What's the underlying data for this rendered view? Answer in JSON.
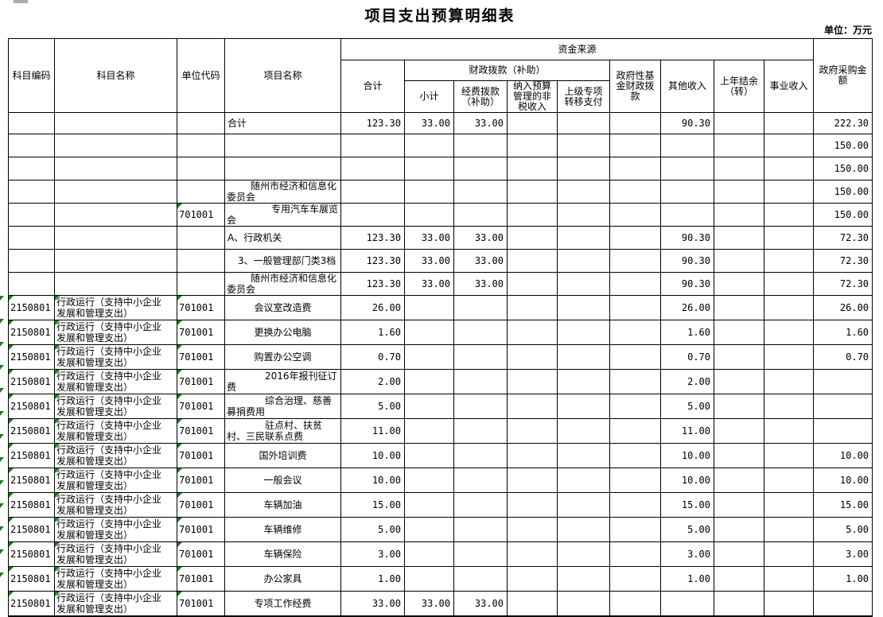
{
  "title": "项目支出预算明细表",
  "unit_label": "单位：万元",
  "colors": {
    "error_indicator": "#1f7a1f",
    "grid_border": "#000000",
    "background": "#ffffff",
    "artifact_gray": "#ababab"
  },
  "columns": {
    "subject_code": "科目编码",
    "subject_name": "科目名称",
    "unit_code": "单位代码",
    "project_name": "项目名称",
    "funding_source_group": "资金来源",
    "total": "合计",
    "fiscal_appropriation_group": "财政拨款（补助）",
    "subtotal": "小计",
    "appropriation": "经费拨款（补助）",
    "nontax_income": "纳入预算管理的非税收入",
    "transfer_payment": "上级专项转移支付",
    "govfund": "政府性基金财政拨款",
    "other_income": "其他收入",
    "carryover": "上年结余（转）",
    "business_income": "事业收入",
    "procurement": "政府采购金额"
  },
  "rows": [
    {
      "project": "合计",
      "align": "l",
      "total": "123.30",
      "subtotal": "33.00",
      "appropriation": "33.00",
      "other_income": "90.30",
      "procurement": "222.30"
    },
    {
      "procurement": "150.00"
    },
    {
      "procurement": "150.00"
    },
    {
      "project": "随州市经济和信息化委员会",
      "align": "i3",
      "procurement": "150.00"
    },
    {
      "unit": "701001",
      "tri": "u",
      "project": "专用汽车车展览会",
      "align": "i5",
      "procurement": "150.00"
    },
    {
      "project": "A、行政机关",
      "align": "l",
      "total": "123.30",
      "subtotal": "33.00",
      "appropriation": "33.00",
      "other_income": "90.30",
      "procurement": "72.30"
    },
    {
      "project": "3、一般管理部门类3档",
      "align": "i1",
      "total": "123.30",
      "subtotal": "33.00",
      "appropriation": "33.00",
      "other_income": "90.30",
      "procurement": "72.30"
    },
    {
      "project": "随州市经济和信息化委员会",
      "align": "i3",
      "total": "123.30",
      "subtotal": "33.00",
      "appropriation": "33.00",
      "other_income": "90.30",
      "procurement": "72.30"
    },
    {
      "code": "2150801",
      "subject": "行政运行（支持中小企业发展和管理支出）",
      "unit": "701001",
      "tri": "csu",
      "left_tri": true,
      "project": "会议室改造费",
      "align": "c",
      "total": "26.00",
      "other_income": "26.00",
      "procurement": "26.00"
    },
    {
      "code": "2150801",
      "subject": "行政运行（支持中小企业发展和管理支出）",
      "unit": "701001",
      "tri": "csu",
      "left_tri": true,
      "project": "更换办公电脑",
      "align": "c",
      "total": "1.60",
      "other_income": "1.60",
      "procurement": "1.60"
    },
    {
      "code": "2150801",
      "subject": "行政运行（支持中小企业发展和管理支出）",
      "unit": "701001",
      "tri": "csu",
      "left_tri": true,
      "project": "购置办公空调",
      "align": "c",
      "total": "0.70",
      "other_income": "0.70",
      "procurement": "0.70"
    },
    {
      "code": "2150801",
      "subject": "行政运行（支持中小企业发展和管理支出）",
      "unit": "701001",
      "tri": "csu",
      "left_tri": true,
      "project": "2016年报刊征订费",
      "align": "i4",
      "total": "2.00",
      "other_income": "2.00"
    },
    {
      "code": "2150801",
      "subject": "行政运行（支持中小企业发展和管理支出）",
      "unit": "701001",
      "tri": "csu",
      "left_tri": true,
      "project": "综合治理、慈善募捐费用",
      "align": "i4",
      "total": "5.00",
      "other_income": "5.00"
    },
    {
      "code": "2150801",
      "subject": "行政运行（支持中小企业发展和管理支出）",
      "unit": "701001",
      "tri": "csu",
      "left_tri": true,
      "project": "驻点村、扶贫村、三民联系点费",
      "align": "i4",
      "total": "11.00",
      "other_income": "11.00"
    },
    {
      "code": "2150801",
      "subject": "行政运行（支持中小企业发展和管理支出）",
      "unit": "701001",
      "tri": "csu",
      "left_tri": true,
      "project": "国外培训费",
      "align": "c",
      "total": "10.00",
      "other_income": "10.00",
      "procurement": "10.00"
    },
    {
      "code": "2150801",
      "subject": "行政运行（支持中小企业发展和管理支出）",
      "unit": "701001",
      "tri": "csu",
      "left_tri": true,
      "project": "一般会议",
      "align": "c",
      "total": "10.00",
      "other_income": "10.00",
      "procurement": "10.00"
    },
    {
      "code": "2150801",
      "subject": "行政运行（支持中小企业发展和管理支出）",
      "unit": "701001",
      "tri": "csu",
      "left_tri": true,
      "project": "车辆加油",
      "align": "c",
      "total": "15.00",
      "other_income": "15.00",
      "procurement": "15.00"
    },
    {
      "code": "2150801",
      "subject": "行政运行（支持中小企业发展和管理支出）",
      "unit": "701001",
      "tri": "csu",
      "left_tri": true,
      "project": "车辆维修",
      "align": "c",
      "total": "5.00",
      "other_income": "5.00",
      "procurement": "5.00"
    },
    {
      "code": "2150801",
      "subject": "行政运行（支持中小企业发展和管理支出）",
      "unit": "701001",
      "tri": "csu",
      "left_tri": true,
      "project": "车辆保险",
      "align": "c",
      "total": "3.00",
      "other_income": "3.00",
      "procurement": "3.00"
    },
    {
      "code": "2150801",
      "subject": "行政运行（支持中小企业发展和管理支出）",
      "unit": "701001",
      "tri": "csu",
      "left_tri": true,
      "project": "办公家具",
      "align": "c",
      "total": "1.00",
      "other_income": "1.00",
      "procurement": "1.00"
    },
    {
      "code": "2150801",
      "subject": "行政运行（支持中小企业发展和管理支出）",
      "unit": "701001",
      "tri": "csu",
      "left_tri": true,
      "project": "专项工作经费",
      "align": "c",
      "total": "33.00",
      "subtotal": "33.00",
      "appropriation": "33.00"
    }
  ]
}
